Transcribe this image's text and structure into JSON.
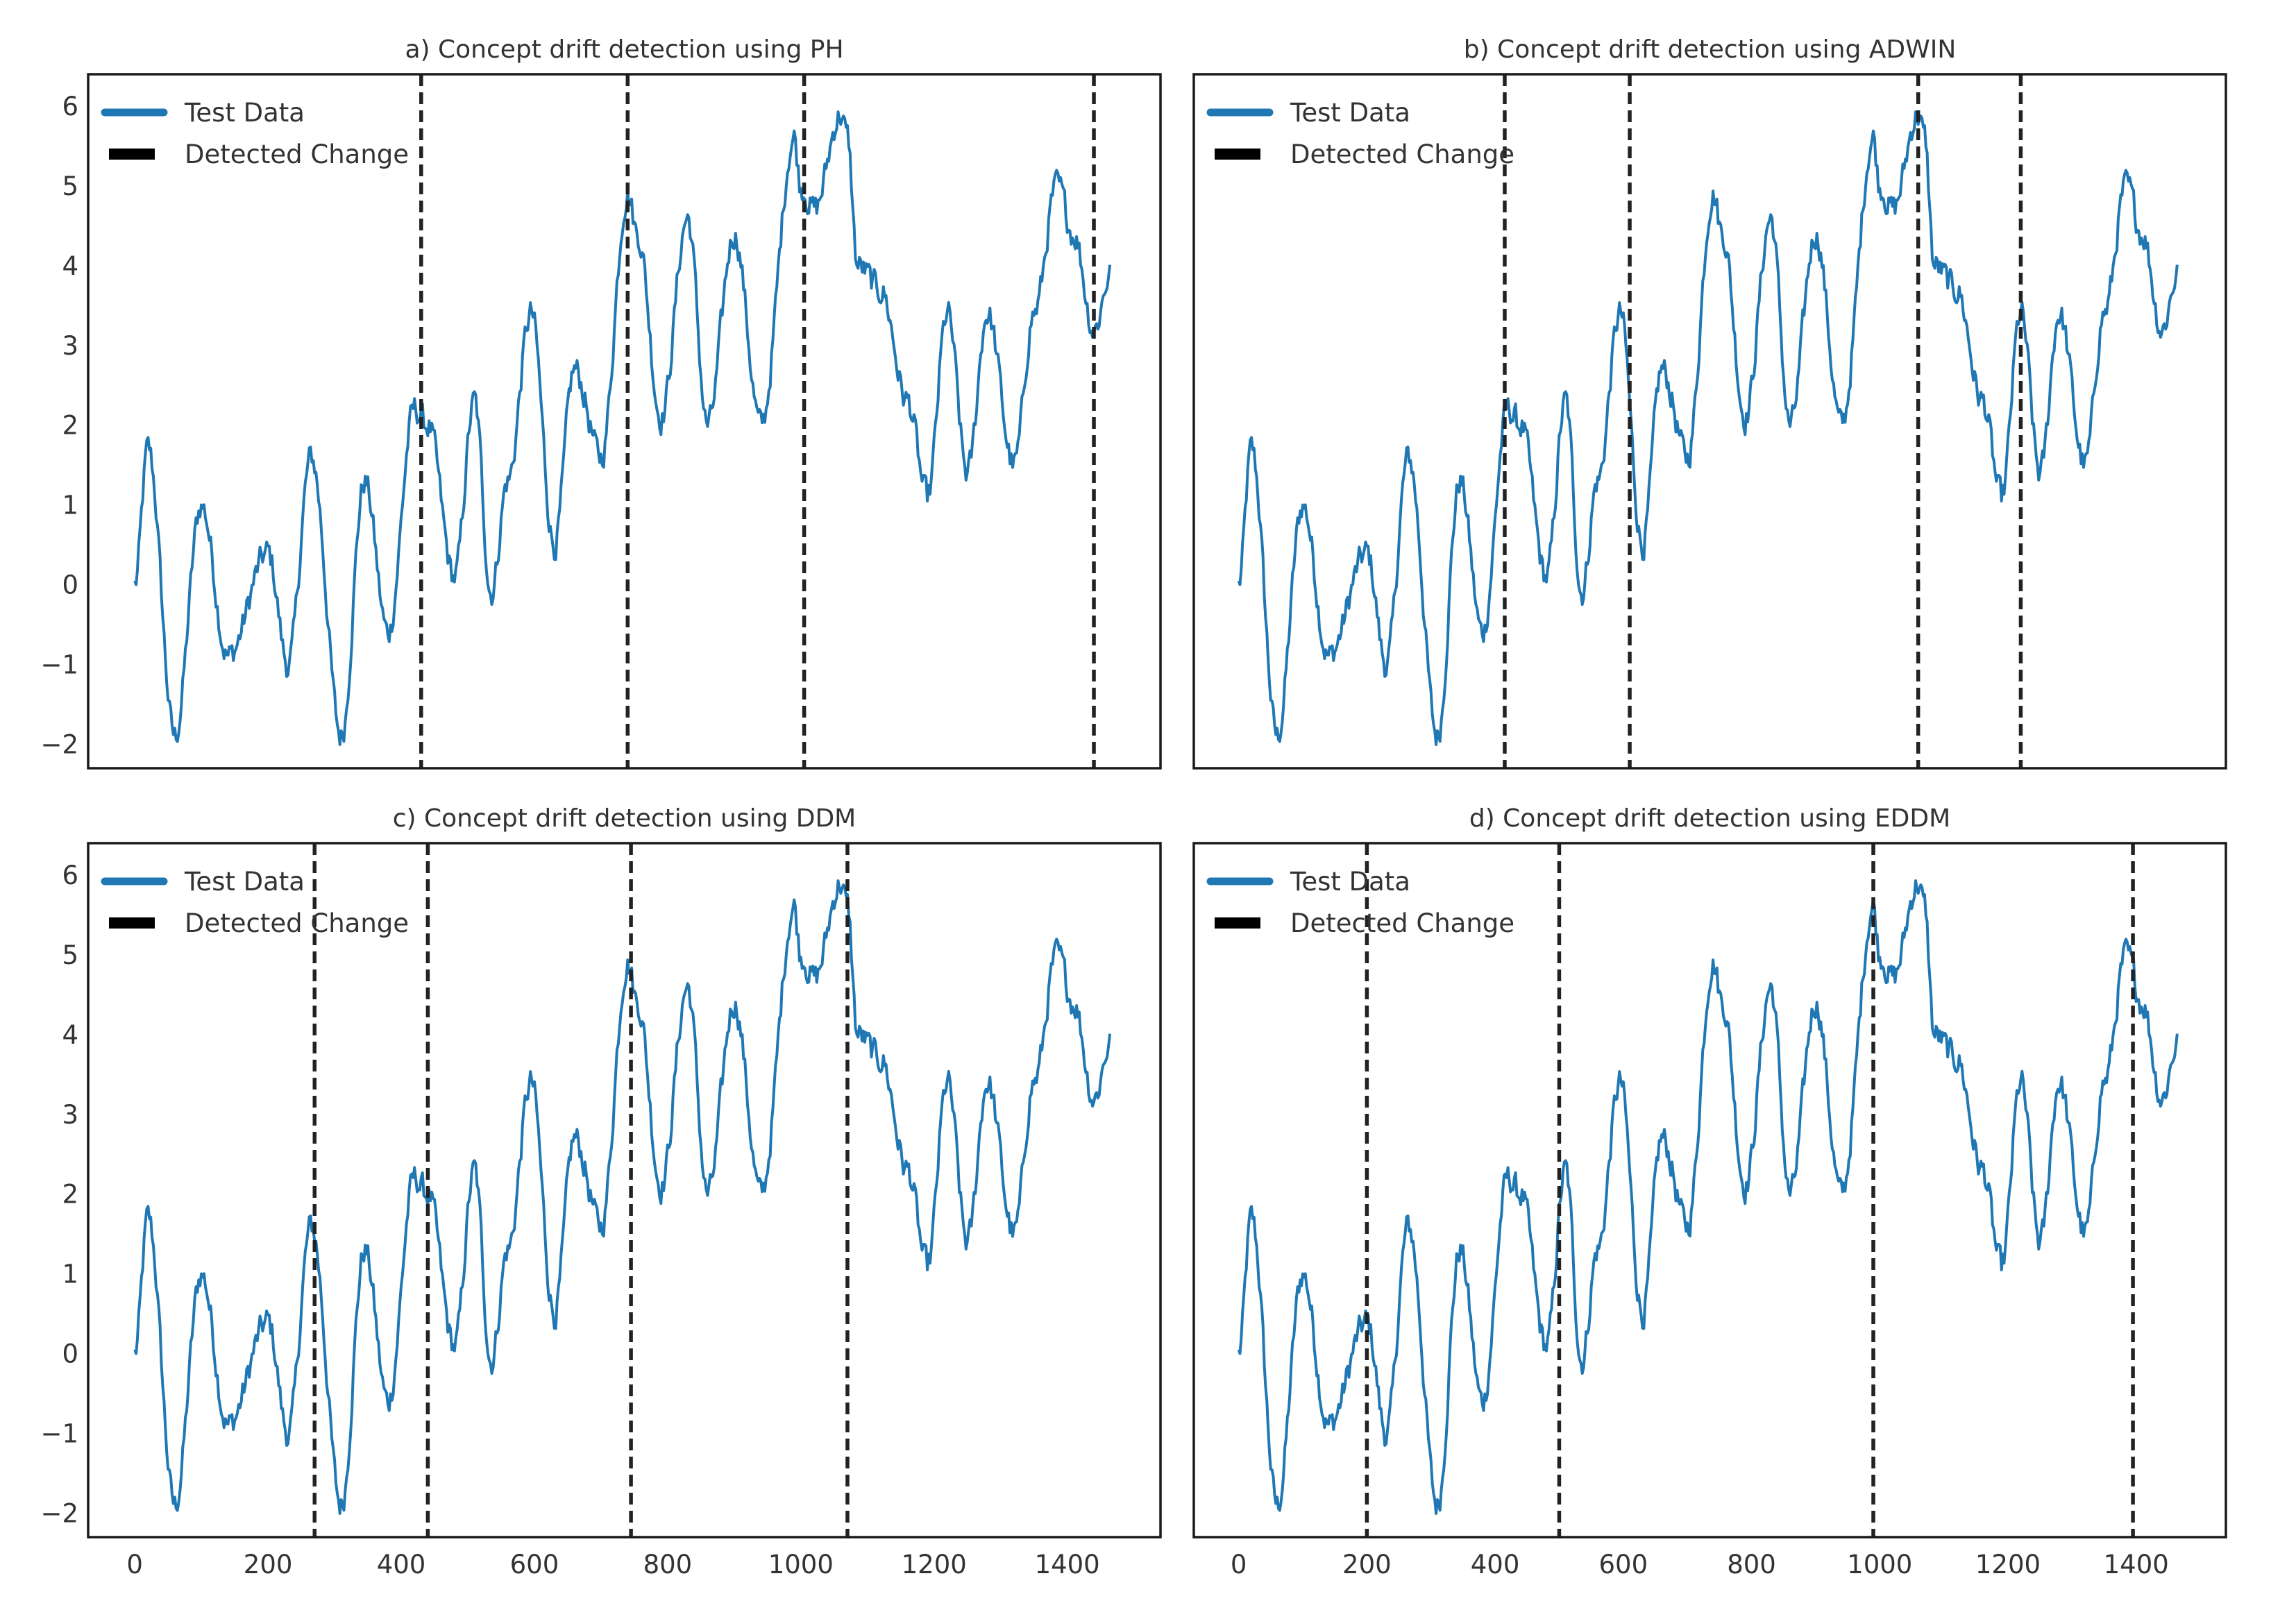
{
  "chart_data": [
    {
      "type": "line",
      "title": "a) Concept drift detection using PH",
      "xlim": [
        -70,
        1540
      ],
      "ylim": [
        -2.3,
        6.4
      ],
      "yticks": [
        -2,
        -1,
        0,
        1,
        2,
        3,
        4,
        5,
        6
      ],
      "ytick_labels": [
        "−2",
        "−1",
        "0",
        "1",
        "2",
        "3",
        "4",
        "5",
        "6"
      ],
      "xticks": [],
      "xtick_labels": [],
      "legend": [
        "Test Data",
        "Detected Change"
      ],
      "series_name": "Test Data",
      "change_points": [
        430,
        740,
        1005,
        1440
      ]
    },
    {
      "type": "line",
      "title": "b) Concept drift detection using ADWIN",
      "xlim": [
        -70,
        1540
      ],
      "ylim": [
        -2.3,
        6.4
      ],
      "yticks": [],
      "ytick_labels": [],
      "xticks": [],
      "xtick_labels": [],
      "legend": [
        "Test Data",
        "Detected Change"
      ],
      "series_name": "Test Data",
      "change_points": [
        415,
        610,
        1060,
        1220
      ]
    },
    {
      "type": "line",
      "title": "c) Concept drift detection using DDM",
      "xlim": [
        -70,
        1540
      ],
      "ylim": [
        -2.3,
        6.4
      ],
      "yticks": [
        -2,
        -1,
        0,
        1,
        2,
        3,
        4,
        5,
        6
      ],
      "ytick_labels": [
        "−2",
        "−1",
        "0",
        "1",
        "2",
        "3",
        "4",
        "5",
        "6"
      ],
      "xticks": [
        0,
        200,
        400,
        600,
        800,
        1000,
        1200,
        1400
      ],
      "xtick_labels": [
        "0",
        "200",
        "400",
        "600",
        "800",
        "1000",
        "1200",
        "1400"
      ],
      "legend": [
        "Test Data",
        "Detected Change"
      ],
      "series_name": "Test Data",
      "change_points": [
        270,
        440,
        745,
        1070
      ]
    },
    {
      "type": "line",
      "title": "d) Concept drift detection using EDDM",
      "xlim": [
        -70,
        1540
      ],
      "ylim": [
        -2.3,
        6.4
      ],
      "yticks": [],
      "ytick_labels": [],
      "xticks": [
        0,
        200,
        400,
        600,
        800,
        1000,
        1200,
        1400
      ],
      "xtick_labels": [
        "0",
        "200",
        "400",
        "600",
        "800",
        "1000",
        "1200",
        "1400"
      ],
      "legend": [
        "Test Data",
        "Detected Change"
      ],
      "series_name": "Test Data",
      "change_points": [
        200,
        500,
        990,
        1395
      ]
    }
  ],
  "series_anchors": {
    "x": [
      0,
      20,
      60,
      100,
      140,
      200,
      230,
      265,
      310,
      345,
      380,
      420,
      440,
      480,
      510,
      535,
      560,
      595,
      630,
      660,
      700,
      740,
      755,
      790,
      830,
      860,
      900,
      940,
      990,
      1000,
      1020,
      1060,
      1070,
      1085,
      1120,
      1160,
      1190,
      1220,
      1250,
      1280,
      1320,
      1350,
      1385,
      1410,
      1440,
      1465
    ],
    "y": [
      0,
      1.7,
      -1.9,
      1.0,
      -0.9,
      0.4,
      -1.0,
      1.6,
      -1.9,
      1.3,
      -0.6,
      2.2,
      2.0,
      0.1,
      2.3,
      -0.1,
      1.3,
      3.4,
      0.5,
      2.7,
      1.6,
      4.9,
      4.4,
      2.1,
      4.6,
      2.0,
      4.4,
      2.0,
      5.6,
      5.0,
      4.7,
      5.9,
      5.6,
      4.0,
      3.7,
      2.3,
      1.1,
      3.4,
      1.4,
      3.4,
      1.5,
      3.4,
      5.0,
      4.4,
      3.2,
      3.9
    ]
  },
  "colors": {
    "series": "#1f77b4",
    "change_line": "#222222",
    "axis_frame": "#1a1a1a",
    "text": "#333333",
    "background": "#ffffff"
  }
}
